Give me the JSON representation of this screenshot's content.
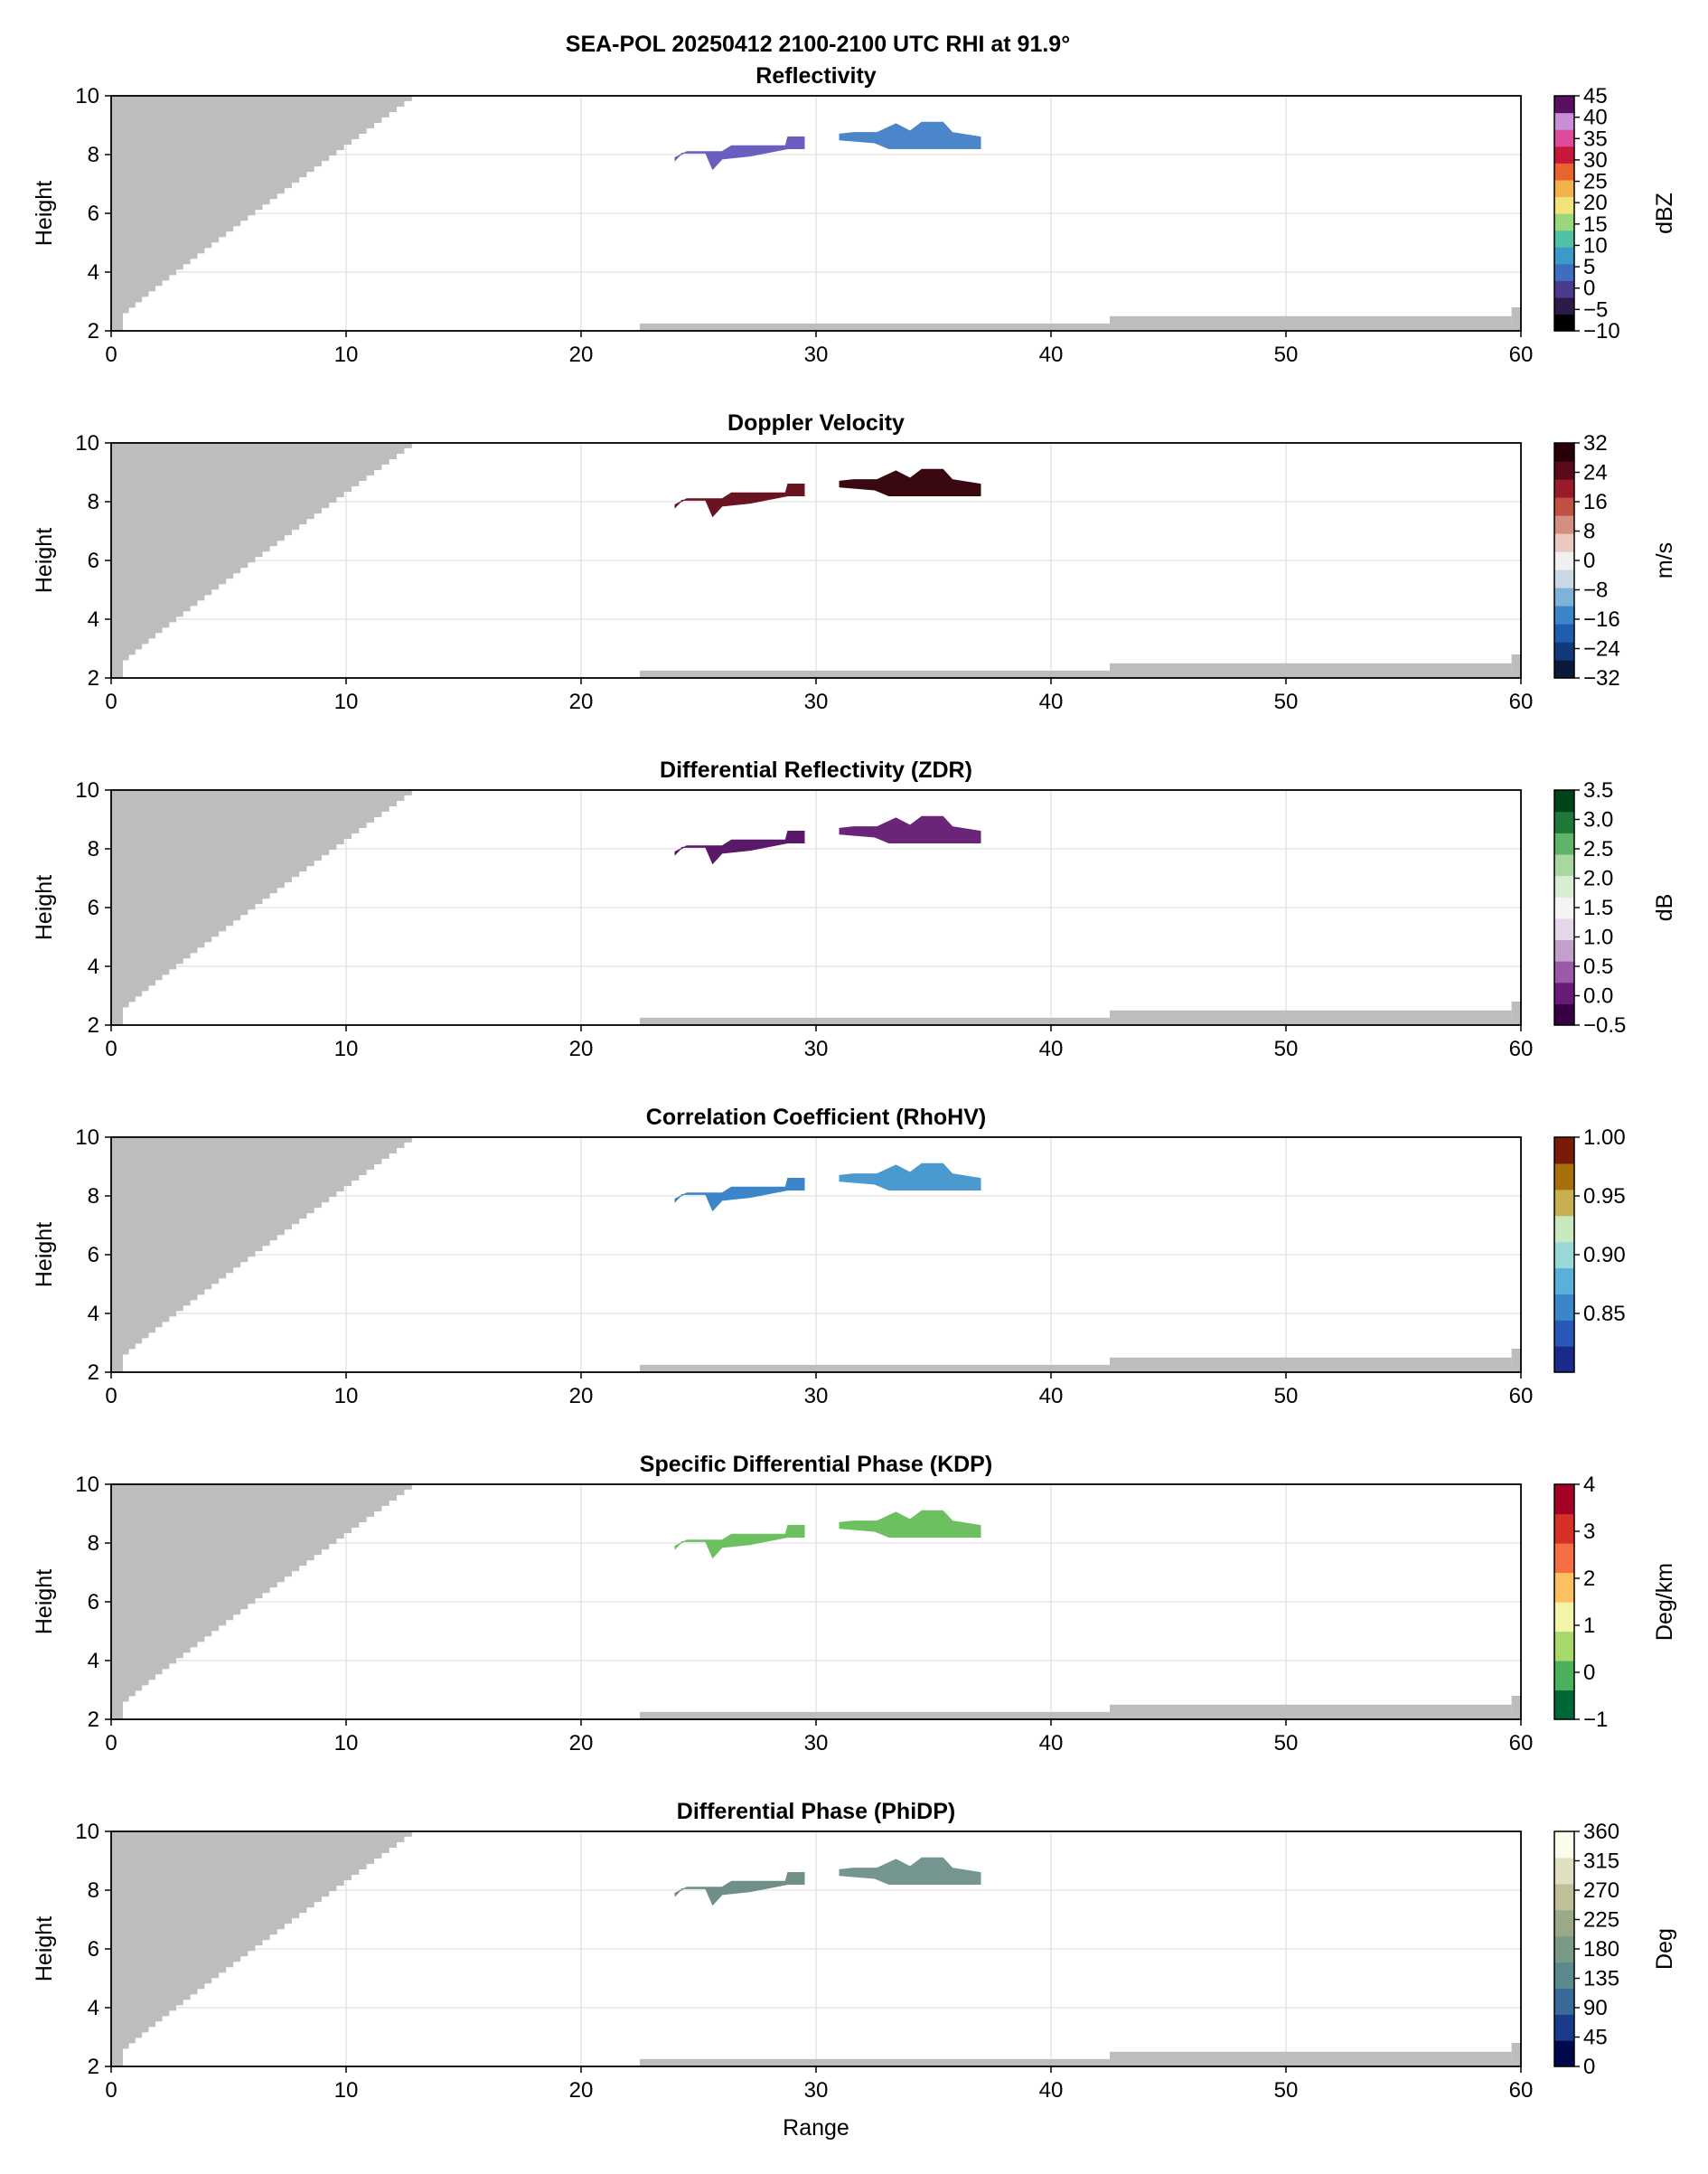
{
  "figure": {
    "title": "SEA-POL 20250412 2100-2100 UTC RHI at 91.9°"
  },
  "chart_data": [
    {
      "type": "heatmap",
      "title": "Reflectivity",
      "xlabel": "",
      "ylabel": "Height",
      "xlim": [
        0,
        60
      ],
      "ylim": [
        2,
        10
      ],
      "x_ticks": [
        "0",
        "10",
        "20",
        "30",
        "40",
        "50",
        "60"
      ],
      "y_ticks": [
        "2",
        "4",
        "6",
        "8",
        "10"
      ],
      "grid": true,
      "colorbar": {
        "label": "dBZ",
        "range": [
          -10,
          45
        ],
        "ticks": [
          "−10",
          "−5",
          "0",
          "5",
          "10",
          "15",
          "20",
          "25",
          "30",
          "35",
          "40",
          "45"
        ],
        "colors": [
          "#000000",
          "#2b1a4a",
          "#4b3b8f",
          "#3f6dbf",
          "#3a9bc9",
          "#4fc2a6",
          "#9ad77a",
          "#f2e27a",
          "#f2b24a",
          "#e8642e",
          "#c9173b",
          "#e04a9a",
          "#c98fd6",
          "#5a1060"
        ]
      },
      "echoes": [
        {
          "x_range": [
            24,
            29.5
          ],
          "y_range": [
            7.5,
            8.6
          ],
          "color": "#6a5fbf"
        },
        {
          "x_range": [
            31,
            37
          ],
          "y_range": [
            8.2,
            9.1
          ],
          "color": "#4a86c9"
        }
      ]
    },
    {
      "type": "heatmap",
      "title": "Doppler Velocity",
      "xlabel": "",
      "ylabel": "Height",
      "xlim": [
        0,
        60
      ],
      "ylim": [
        2,
        10
      ],
      "x_ticks": [
        "0",
        "10",
        "20",
        "30",
        "40",
        "50",
        "60"
      ],
      "y_ticks": [
        "2",
        "4",
        "6",
        "8",
        "10"
      ],
      "grid": true,
      "colorbar": {
        "label": "m/s",
        "range": [
          -32,
          32
        ],
        "ticks": [
          "−32",
          "−24",
          "−16",
          "−8",
          "0",
          "8",
          "16",
          "24",
          "32"
        ],
        "colors": [
          "#0b1a3a",
          "#123a7a",
          "#1e5db0",
          "#3a86c8",
          "#7fb2d8",
          "#c9d8e4",
          "#f0f0f0",
          "#e8c8c0",
          "#d48f80",
          "#c05040",
          "#9a1c2a",
          "#5a0a18",
          "#2a0008"
        ]
      },
      "echoes": [
        {
          "x_range": [
            24,
            29.5
          ],
          "y_range": [
            7.5,
            8.6
          ],
          "color": "#6a1422"
        },
        {
          "x_range": [
            31,
            37
          ],
          "y_range": [
            8.2,
            9.1
          ],
          "color": "#3a0810"
        }
      ]
    },
    {
      "type": "heatmap",
      "title": "Differential Reflectivity (ZDR)",
      "xlabel": "",
      "ylabel": "Height",
      "xlim": [
        0,
        60
      ],
      "ylim": [
        2,
        10
      ],
      "x_ticks": [
        "0",
        "10",
        "20",
        "30",
        "40",
        "50",
        "60"
      ],
      "y_ticks": [
        "2",
        "4",
        "6",
        "8",
        "10"
      ],
      "grid": true,
      "colorbar": {
        "label": "dB",
        "range": [
          -0.5,
          3.5
        ],
        "ticks": [
          "−0.5",
          "0.0",
          "0.5",
          "1.0",
          "1.5",
          "2.0",
          "2.5",
          "3.0",
          "3.5"
        ],
        "colors": [
          "#3a0046",
          "#6a1a78",
          "#9a5aa8",
          "#c3a0cc",
          "#e6d6ea",
          "#f4f4f4",
          "#d8edd4",
          "#a8d8a0",
          "#5fb46a",
          "#1f7a3a",
          "#00441b"
        ]
      },
      "echoes": [
        {
          "x_range": [
            24,
            29.5
          ],
          "y_range": [
            7.5,
            8.6
          ],
          "color": "#5a1868"
        },
        {
          "x_range": [
            31,
            37
          ],
          "y_range": [
            8.2,
            9.1
          ],
          "color": "#6a2478"
        }
      ]
    },
    {
      "type": "heatmap",
      "title": "Correlation Coefficient (RhoHV)",
      "xlabel": "",
      "ylabel": "Height",
      "xlim": [
        0,
        60
      ],
      "ylim": [
        2,
        10
      ],
      "x_ticks": [
        "0",
        "10",
        "20",
        "30",
        "40",
        "50",
        "60"
      ],
      "y_ticks": [
        "2",
        "4",
        "6",
        "8",
        "10"
      ],
      "grid": true,
      "colorbar": {
        "label": "",
        "range": [
          0.8,
          1.0
        ],
        "ticks": [
          "0.85",
          "0.90",
          "0.95",
          "1.00"
        ],
        "colors": [
          "#1a2a8a",
          "#2a58b8",
          "#3a86c8",
          "#5ab0d8",
          "#9ad8d8",
          "#c8e8c0",
          "#c8b050",
          "#a8700a",
          "#7a1a08"
        ]
      },
      "echoes": [
        {
          "x_range": [
            24,
            29.5
          ],
          "y_range": [
            7.5,
            8.6
          ],
          "color": "#3a86c8"
        },
        {
          "x_range": [
            31,
            37
          ],
          "y_range": [
            8.2,
            9.1
          ],
          "color": "#4a9ad0"
        }
      ]
    },
    {
      "type": "heatmap",
      "title": "Specific Differential Phase (KDP)",
      "xlabel": "",
      "ylabel": "Height",
      "xlim": [
        0,
        60
      ],
      "ylim": [
        2,
        10
      ],
      "x_ticks": [
        "0",
        "10",
        "20",
        "30",
        "40",
        "50",
        "60"
      ],
      "y_ticks": [
        "2",
        "4",
        "6",
        "8",
        "10"
      ],
      "grid": true,
      "colorbar": {
        "label": "Deg/km",
        "range": [
          -1,
          4
        ],
        "ticks": [
          "−1",
          "0",
          "1",
          "2",
          "3",
          "4"
        ],
        "colors": [
          "#006837",
          "#4bb05c",
          "#a6d96a",
          "#f4f4a8",
          "#fdc060",
          "#f46d43",
          "#d73027",
          "#a50026"
        ]
      },
      "echoes": [
        {
          "x_range": [
            24,
            29.5
          ],
          "y_range": [
            7.5,
            8.6
          ],
          "color": "#6cc060"
        },
        {
          "x_range": [
            31,
            37
          ],
          "y_range": [
            8.2,
            9.1
          ],
          "color": "#6cc060"
        }
      ]
    },
    {
      "type": "heatmap",
      "title": "Differential Phase (PhiDP)",
      "xlabel": "Range",
      "ylabel": "Height",
      "xlim": [
        0,
        60
      ],
      "ylim": [
        2,
        10
      ],
      "x_ticks": [
        "0",
        "10",
        "20",
        "30",
        "40",
        "50",
        "60"
      ],
      "y_ticks": [
        "2",
        "4",
        "6",
        "8",
        "10"
      ],
      "grid": true,
      "colorbar": {
        "label": "Deg",
        "range": [
          0,
          360
        ],
        "ticks": [
          "0",
          "45",
          "90",
          "135",
          "180",
          "225",
          "270",
          "315",
          "360"
        ],
        "colors": [
          "#000a4a",
          "#1a3a8a",
          "#3a6a9a",
          "#5a8a90",
          "#7a9a88",
          "#9aaa88",
          "#c0c098",
          "#e0e0c0",
          "#fcfcec"
        ]
      },
      "echoes": [
        {
          "x_range": [
            24,
            29.5
          ],
          "y_range": [
            7.5,
            8.6
          ],
          "color": "#6f8f88"
        },
        {
          "x_range": [
            31,
            37
          ],
          "y_range": [
            8.2,
            9.1
          ],
          "color": "#759590"
        }
      ]
    }
  ]
}
